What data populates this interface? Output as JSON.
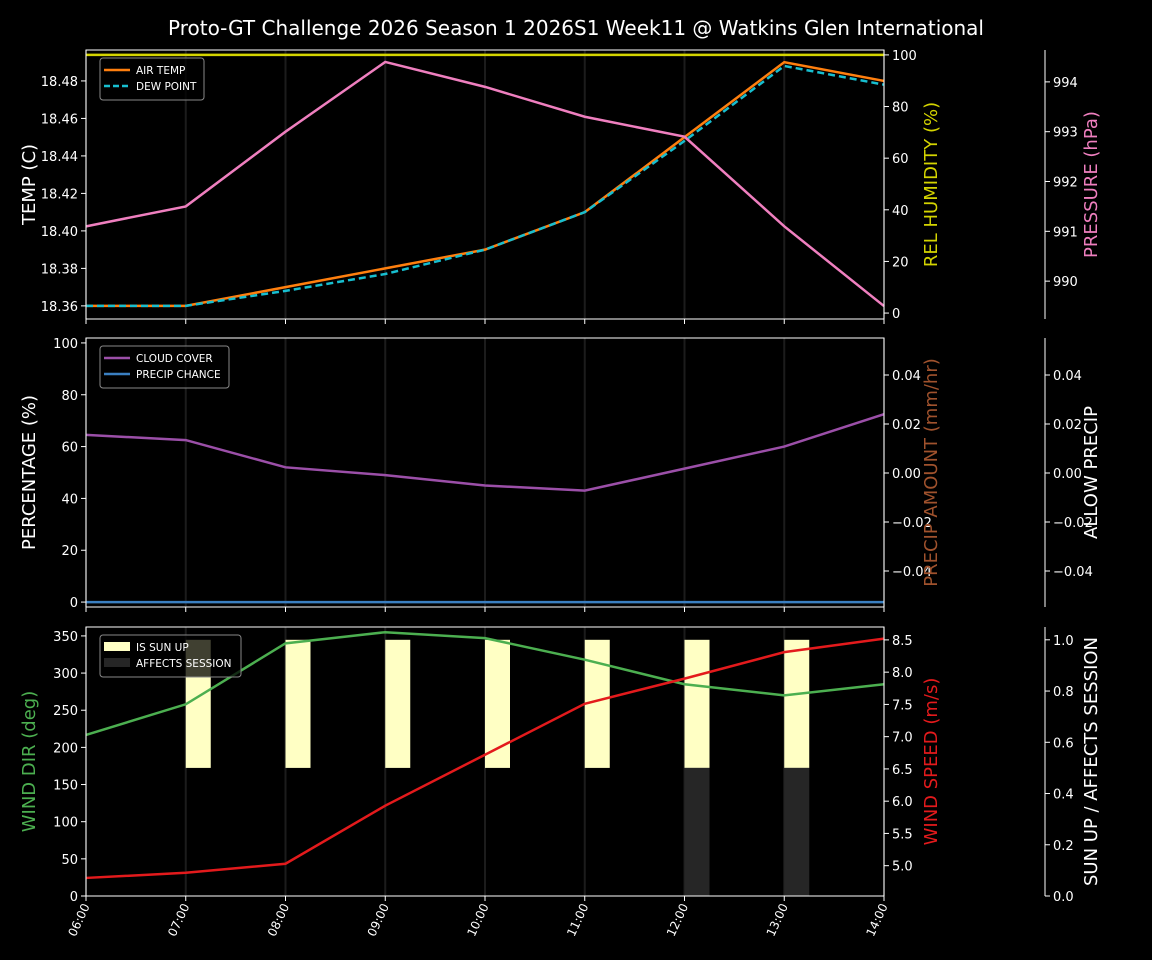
{
  "title": "Proto-GT Challenge  2026 Season 1 2026S1 Week11 @ Watkins Glen International",
  "chart_data": [
    {
      "type": "line",
      "x": [
        "06:00",
        "07:00",
        "08:00",
        "09:00",
        "10:00",
        "11:00",
        "12:00",
        "13:00",
        "14:00"
      ],
      "grid": "vertical",
      "legend": "top-left",
      "axes": {
        "left": {
          "label": "TEMP (C)",
          "color": "#ffffff",
          "range": [
            18.353,
            18.4965
          ],
          "ticks": [
            "18.36",
            "18.38",
            "18.40",
            "18.42",
            "18.44",
            "18.46",
            "18.48"
          ]
        },
        "right1": {
          "label": "REL HUMIDITY (%)",
          "color": "#d4d400",
          "range": [
            -2.3,
            101.9
          ],
          "ticks": [
            "0",
            "20",
            "40",
            "60",
            "80",
            "100"
          ]
        },
        "right2": {
          "label": "PRESSURE (hPa)",
          "color": "#ef7fbf",
          "range": [
            989.24,
            994.64
          ],
          "ticks": [
            "990",
            "991",
            "992",
            "993",
            "994"
          ]
        }
      },
      "series": [
        {
          "name": "AIR TEMP",
          "axis": "left",
          "color": "#ff7f0e",
          "dash": false,
          "legend": true,
          "values": [
            18.36,
            18.36,
            18.37,
            18.38,
            18.39,
            18.41,
            18.45,
            18.49,
            18.48
          ]
        },
        {
          "name": "DEW POINT",
          "axis": "left",
          "color": "#17becf",
          "dash": true,
          "legend": true,
          "values": [
            18.36,
            18.36,
            18.368,
            18.377,
            18.39,
            18.41,
            18.448,
            18.488,
            18.478
          ]
        },
        {
          "axis": "right1",
          "color": "#d4d400",
          "dash": false,
          "legend": false,
          "values": [
            100,
            100,
            100,
            100,
            100,
            100,
            100,
            100,
            100
          ]
        },
        {
          "axis": "right2",
          "color": "#ef7fbf",
          "dash": false,
          "legend": false,
          "values": [
            991.1,
            991.5,
            993.0,
            994.4,
            993.9,
            993.3,
            992.9,
            991.1,
            989.5
          ]
        }
      ]
    },
    {
      "type": "line",
      "x": [
        "06:00",
        "07:00",
        "08:00",
        "09:00",
        "10:00",
        "11:00",
        "12:00",
        "13:00",
        "14:00"
      ],
      "grid": "vertical",
      "legend": "top-left",
      "axes": {
        "left": {
          "label": "PERCENTAGE (%)",
          "color": "#ffffff",
          "range": [
            -1.9,
            101.9
          ],
          "ticks": [
            "0",
            "20",
            "40",
            "60",
            "80",
            "100"
          ]
        },
        "right1": {
          "label": "PRECIP AMOUNT (mm/hr)",
          "color": "#a0522d",
          "range": [
            -0.0547,
            0.0551
          ],
          "ticks": [
            "−0.04",
            "−0.02",
            "0.00",
            "0.02",
            "0.04"
          ]
        },
        "right2": {
          "label": "ALLOW PRECIP",
          "color": "#ffffff",
          "range": [
            -0.0547,
            0.0551
          ],
          "ticks": [
            "−0.04",
            "−0.02",
            "0.00",
            "0.02",
            "0.04"
          ]
        }
      },
      "series": [
        {
          "name": "CLOUD COVER",
          "axis": "left",
          "color": "#9b4fa8",
          "dash": false,
          "legend": true,
          "values": [
            64.5,
            62.5,
            52,
            49,
            45,
            43,
            51.5,
            60,
            72.5
          ]
        },
        {
          "name": "PRECIP CHANCE",
          "axis": "left",
          "color": "#3a7fc1",
          "dash": false,
          "legend": true,
          "values": [
            0,
            0,
            0,
            0,
            0,
            0,
            0,
            0,
            0
          ]
        }
      ]
    },
    {
      "type": "line",
      "x": [
        "06:00",
        "07:00",
        "08:00",
        "09:00",
        "10:00",
        "11:00",
        "12:00",
        "13:00",
        "14:00"
      ],
      "grid": "vertical",
      "legend": "top-left",
      "axes": {
        "left": {
          "label": "WIND DIR (deg)",
          "color": "#4caf50",
          "range": [
            0,
            362
          ],
          "ticks": [
            "0",
            "50",
            "100",
            "150",
            "200",
            "250",
            "300",
            "350"
          ]
        },
        "right1": {
          "label": "WIND SPEED (m/s)",
          "color": "#e31a1c",
          "range": [
            4.53,
            8.7
          ],
          "ticks": [
            "5.0",
            "5.5",
            "6.0",
            "6.5",
            "7.0",
            "7.5",
            "8.0",
            "8.5"
          ]
        },
        "right2": {
          "label": "SUN UP / AFFECTS SESSION",
          "color": "#ffffff",
          "range": [
            0,
            1.05
          ],
          "ticks": [
            "0.0",
            "0.2",
            "0.4",
            "0.6",
            "0.8",
            "1.0"
          ]
        }
      },
      "bars": [
        {
          "name": "IS SUN UP",
          "axis": "right2",
          "color": "#ffffc4",
          "base": 0.5,
          "values": [
            0,
            1,
            1,
            1,
            1,
            1,
            1,
            1,
            0
          ]
        },
        {
          "name": "AFFECTS SESSION",
          "axis": "right2",
          "color": "#262626",
          "base": 0,
          "values": [
            0,
            0,
            0,
            0,
            0,
            0,
            1,
            1,
            0
          ]
        }
      ],
      "series": [
        {
          "axis": "left",
          "color": "#4caf50",
          "dash": false,
          "legend": false,
          "values": [
            216.7,
            258,
            340,
            355,
            347,
            318,
            285,
            270,
            285
          ]
        },
        {
          "axis": "right1",
          "color": "#e31a1c",
          "dash": false,
          "legend": false,
          "values": [
            4.81,
            4.89,
            5.03,
            5.93,
            6.72,
            7.51,
            7.9,
            8.31,
            8.52
          ]
        }
      ]
    }
  ]
}
